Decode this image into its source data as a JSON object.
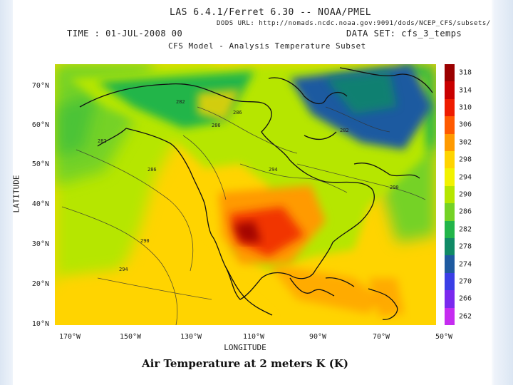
{
  "header": {
    "title": "LAS 6.4.1/Ferret 6.30 -- NOAA/PMEL",
    "dods_url": "DODS URL: http://nomads.ncdc.noaa.gov:9091/dods/NCEP_CFS/subsets/",
    "time": "TIME : 01-JUL-2008 00",
    "dataset": "DATA SET: cfs_3_temps",
    "subtitle": "CFS Model - Analysis Temperature Subset"
  },
  "axes": {
    "ylabel": "LATITUDE",
    "xlabel": "LONGITUDE",
    "yticks": [
      "70°N",
      "60°N",
      "50°N",
      "40°N",
      "30°N",
      "20°N",
      "10°N"
    ],
    "xticks": [
      "170°W",
      "150°W",
      "130°W",
      "110°W",
      "90°W",
      "70°W",
      "50°W"
    ]
  },
  "caption": "Air Temperature at 2 meters  K (K)",
  "colorbar": {
    "levels": [
      318,
      314,
      310,
      306,
      302,
      298,
      294,
      290,
      286,
      282,
      278,
      274,
      270,
      266,
      262
    ],
    "colors": [
      "#9b0000",
      "#c90000",
      "#ee1c00",
      "#ff5a00",
      "#ff9a00",
      "#ffd400",
      "#f2f200",
      "#b6e600",
      "#74d226",
      "#22b54a",
      "#108a66",
      "#1e5aa0",
      "#3a3ee6",
      "#7a29ee",
      "#c52cf0"
    ]
  },
  "contour_labels": [
    "286",
    "282",
    "286",
    "282",
    "282",
    "294",
    "294",
    "290",
    "290",
    "286"
  ],
  "map": {
    "lon_range": [
      -175,
      -50
    ],
    "lat_range": [
      10,
      75
    ],
    "ocean_color": "#ffd400"
  }
}
